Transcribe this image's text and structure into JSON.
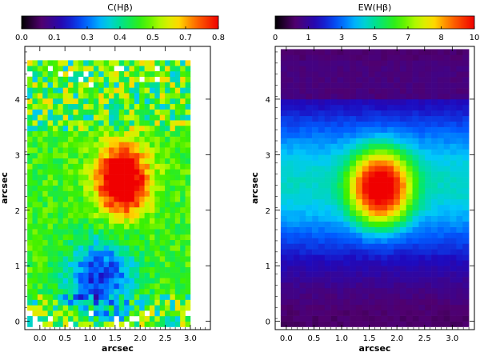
{
  "chart_data": [
    {
      "type": "heatmap",
      "title": "C(Hβ)",
      "xlabel": "arcsec",
      "ylabel": "arcsec",
      "xlim": [
        -0.3,
        3.4
      ],
      "ylim": [
        -0.15,
        4.95
      ],
      "xticks": [
        "0.0",
        "0.5",
        "1.0",
        "1.5",
        "2.0",
        "2.5",
        "3.0"
      ],
      "yticks": [
        "0",
        "1",
        "2",
        "3",
        "4"
      ],
      "colorbar": {
        "min": 0.0,
        "max": 0.8,
        "ticks": [
          "0.0",
          "0.1",
          "0.3",
          "0.4",
          "0.5",
          "0.7",
          "0.8"
        ]
      },
      "grid": {
        "nx": 32,
        "ny": 49,
        "x0": -0.25,
        "x1": 3.0,
        "y0": -0.1,
        "y1": 4.7
      },
      "peak": {
        "x": 1.65,
        "y": 2.55,
        "value": 0.8
      },
      "background_value": 0.45,
      "low_region": {
        "x": 1.2,
        "y": 0.8,
        "value": 0.15
      },
      "pattern": "noisy"
    },
    {
      "type": "heatmap",
      "title": "EW(Hβ)",
      "xlabel": "arcsec",
      "ylabel": "arcsec",
      "xlim": [
        -0.2,
        3.4
      ],
      "ylim": [
        -0.15,
        4.95
      ],
      "xticks": [
        "0.0",
        "0.5",
        "1.0",
        "1.5",
        "2.0",
        "2.5",
        "3.0"
      ],
      "yticks": [
        "0",
        "1",
        "2",
        "3",
        "4"
      ],
      "colorbar": {
        "min": 0,
        "max": 10,
        "ticks": [
          "0",
          "1",
          "3",
          "5",
          "7",
          "8",
          "10"
        ]
      },
      "grid": {
        "nx": 30,
        "ny": 50,
        "x0": -0.1,
        "x1": 3.3,
        "y0": -0.1,
        "y1": 4.9
      },
      "peak": {
        "x": 1.7,
        "y": 2.4,
        "value": 10
      },
      "background_value": 0.5,
      "pattern": "smooth"
    }
  ]
}
